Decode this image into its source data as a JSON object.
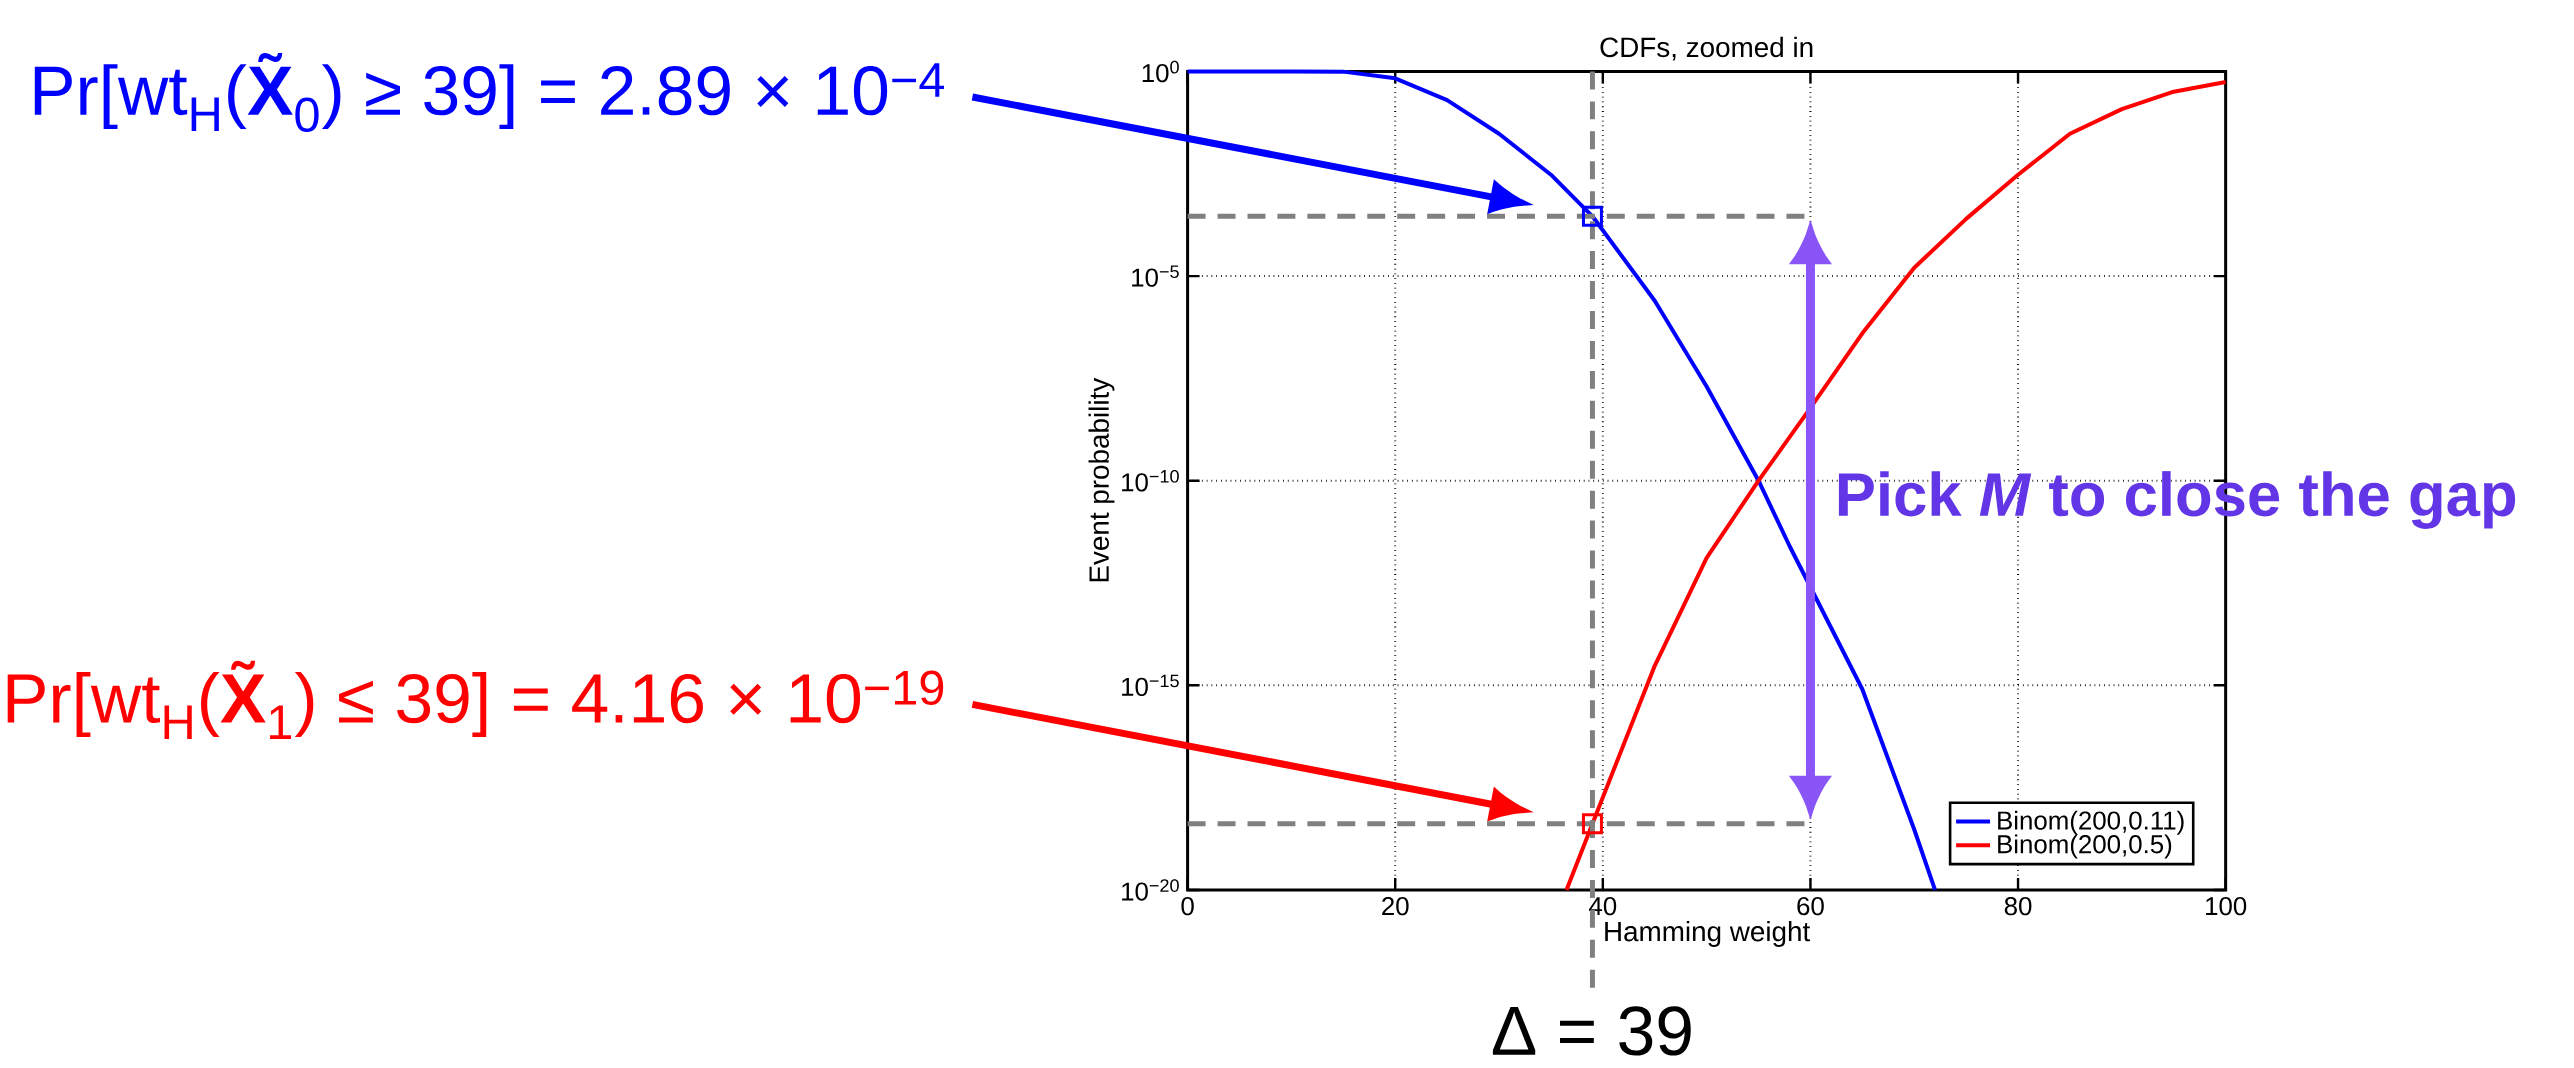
{
  "chart_data": {
    "type": "line",
    "title": "CDFs, zoomed in",
    "xlabel": "Hamming weight",
    "ylabel": "Event probability",
    "xlim": [
      0,
      100
    ],
    "xticks": [
      0,
      20,
      40,
      60,
      80,
      100
    ],
    "ylim": [
      1e-20,
      1
    ],
    "log": "y",
    "yticks": [
      {
        "value": 1e-20,
        "label": "10$^{−20}$"
      },
      {
        "value": 1e-15,
        "label": "10$^{−15}$"
      },
      {
        "value": 1e-10,
        "label": "10$^{−10}$"
      },
      {
        "value": 1e-05,
        "label": "10$^{−5}$"
      },
      {
        "value": 1,
        "label": "10$^{0}$"
      }
    ],
    "grid": true,
    "legend": "bottom right",
    "marker": "none",
    "line_style": "solid",
    "series": [
      {
        "name": "Binom(200,0.11)",
        "color": "#0000ff",
        "x": [
          0,
          10,
          15,
          20,
          25,
          30,
          35,
          39,
          45,
          50,
          55,
          58,
          65,
          70,
          72
        ],
        "values": [
          1,
          1,
          0.99,
          0.68,
          0.2,
          0.03,
          0.003,
          0.000289,
          2.5e-06,
          2e-08,
          1e-10,
          2.5e-12,
          8e-16,
          3e-19,
          1e-20
        ]
      },
      {
        "name": "Binom(200,0.5)",
        "color": "#ff0000",
        "x": [
          36.5,
          39,
          45,
          50,
          55,
          60,
          65,
          70,
          75,
          80,
          85,
          90,
          95,
          100
        ],
        "values": [
          1e-20,
          4.16e-19,
          3e-15,
          1.3e-12,
          1e-10,
          6e-09,
          4e-07,
          1.6e-05,
          0.00025,
          0.003,
          0.03,
          0.12,
          0.32,
          0.55
        ]
      },
      {
        "type": "line",
        "color": "#808080",
        "line_style": "dashed",
        "x": [
          0,
          60
        ],
        "values": [
          0.000289,
          0.000289
        ]
      },
      {
        "type": "line",
        "color": "#808080",
        "line_style": "dashed",
        "x": [
          0,
          60
        ],
        "values": [
          4.16e-19,
          4.16e-19
        ]
      }
    ],
    "ref_lines": [
      {
        "axis": "x",
        "value": 39,
        "label": "Δ = 39",
        "color": "#808080",
        "line_style": "dashed"
      }
    ],
    "annotations": [
      "Pr[wt$_{H}$(**X̃**$_{0}$) ≥ 39] = 2.89 × 10$^{−4}$",
      "Pr[wt$_{H}$(**X̃**$_{1}$) ≤ 39] = 4.16 × 10$^{−19}$",
      "Pick *M* to close the gap"
    ]
  }
}
